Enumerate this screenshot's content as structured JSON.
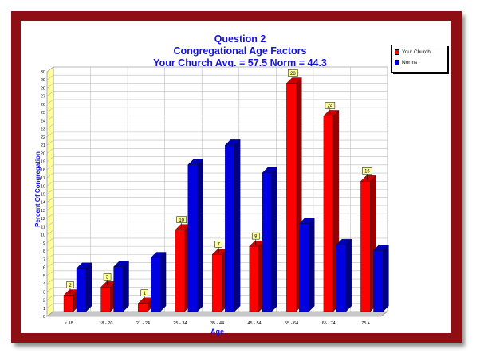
{
  "chart_data": {
    "type": "bar",
    "title": [
      "Question 2",
      "Congregational Age Factors",
      "Your Church Avg. = 57.5   Norm = 44.3"
    ],
    "xlabel": "Age",
    "ylabel": "Percent Of Congregation",
    "ylim": [
      0,
      30
    ],
    "yticks": [
      "0",
      "1",
      "2",
      "3",
      "4",
      "5",
      "6",
      "7",
      "8",
      "9",
      "10",
      "11",
      "12",
      "13",
      "14",
      "15",
      "16",
      "17",
      "18",
      "19",
      "20",
      "21",
      "22",
      "23",
      "24",
      "25",
      "26",
      "27",
      "28",
      "29",
      "30"
    ],
    "categories": [
      "< 18",
      "18 - 20",
      "21 - 24",
      "25 - 34",
      "35 - 44",
      "45 - 54",
      "55 - 64",
      "65 - 74",
      "75 +"
    ],
    "series": [
      {
        "name": "Your Church",
        "color": "#ff0000",
        "values": [
          2,
          3,
          1,
          10,
          7,
          8,
          28,
          24,
          16
        ],
        "data_labels": [
          "2",
          "3",
          "1",
          "10",
          "7",
          "8",
          "28",
          "24",
          "16"
        ]
      },
      {
        "name": "Norms",
        "color": "#0000e0",
        "values": [
          5.3,
          5.5,
          6.6,
          18,
          20.4,
          17,
          10.8,
          8.2,
          7.5
        ]
      }
    ],
    "grid": true,
    "legend_position": "top-right"
  }
}
